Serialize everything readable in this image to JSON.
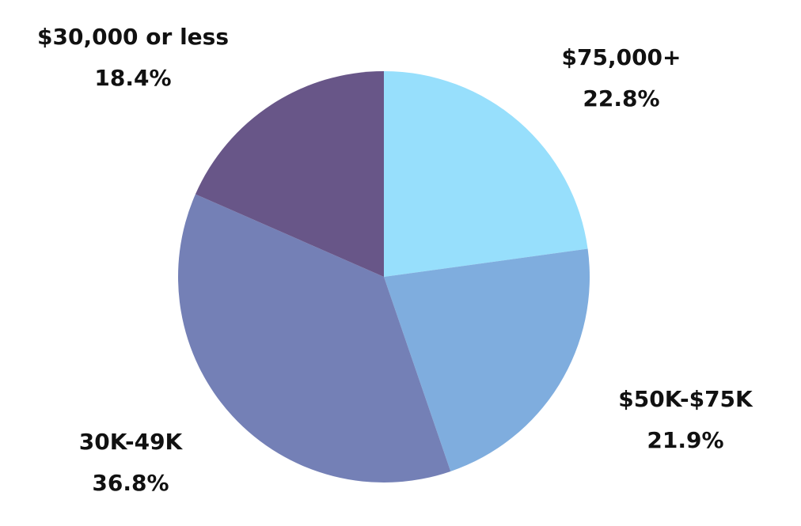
{
  "chart_data": {
    "type": "pie",
    "title": "",
    "start_angle_deg": 0,
    "direction": "clockwise",
    "slices": [
      {
        "label": "$75,000+",
        "value": 22.8,
        "value_text": "22.8%",
        "color": "#97dffc"
      },
      {
        "label": "$50K-$75K",
        "value": 21.9,
        "value_text": "21.9%",
        "color": "#7fadde"
      },
      {
        "label": "30K-49K",
        "value": 36.8,
        "value_text": "36.8%",
        "color": "#7480b6"
      },
      {
        "label": "$30,000 or less",
        "value": 18.4,
        "value_text": "18.4%",
        "color": "#685688"
      }
    ]
  }
}
